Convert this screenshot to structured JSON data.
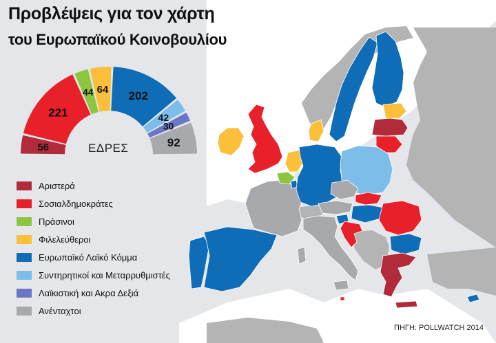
{
  "title": "Προβλέψεις για τον χάρτη",
  "subtitle": "του Ευρωπαϊκού Κοινοβουλίου",
  "seats_label": "ΕΔΡΕΣ",
  "source": "ΠΗΓΗ: POLLWATCH 2014",
  "colors": {
    "background": "#e4e6ea",
    "sea": "#ffffff",
    "non_eu": "#b4b4b4"
  },
  "groups": [
    {
      "key": "left",
      "label": "Αριστερά",
      "seats": 56,
      "color": "#b22b3a"
    },
    {
      "key": "sd",
      "label": "Σοσιαλδημοκράτες",
      "seats": 221,
      "color": "#e8202a"
    },
    {
      "key": "greens",
      "label": "Πράσινοι",
      "seats": 44,
      "color": "#8cc63f"
    },
    {
      "key": "liberals",
      "label": "Φιλελεύθεροι",
      "seats": 64,
      "color": "#fbbf3a"
    },
    {
      "key": "epp",
      "label": "Ευρωπαϊκό Λαϊκό Κόμμα",
      "seats": 202,
      "color": "#0f6cb6"
    },
    {
      "key": "ecr",
      "label": "Συντηρητικοί και Μεταρρυθμιστές",
      "seats": 42,
      "color": "#7cbdea"
    },
    {
      "key": "efd",
      "label": "Λαϊκιστική και Ακρα Δεξιά",
      "seats": 30,
      "color": "#6b76c4"
    },
    {
      "key": "ni",
      "label": "Ανένταχτοι",
      "seats": 92,
      "color": "#a7a9ac"
    }
  ],
  "countries": [
    {
      "name": "Ireland",
      "group": "liberals"
    },
    {
      "name": "United Kingdom",
      "group": "sd"
    },
    {
      "name": "Portugal",
      "group": "epp"
    },
    {
      "name": "Spain",
      "group": "epp"
    },
    {
      "name": "France",
      "group": "ni"
    },
    {
      "name": "Belgium",
      "group": "greens"
    },
    {
      "name": "Netherlands",
      "group": "liberals"
    },
    {
      "name": "Luxembourg",
      "group": "epp"
    },
    {
      "name": "Germany",
      "group": "epp"
    },
    {
      "name": "Denmark",
      "group": "liberals"
    },
    {
      "name": "Sweden",
      "group": "epp"
    },
    {
      "name": "Finland",
      "group": "epp"
    },
    {
      "name": "Estonia",
      "group": "liberals"
    },
    {
      "name": "Latvia",
      "group": "left"
    },
    {
      "name": "Lithuania",
      "group": "sd"
    },
    {
      "name": "Poland",
      "group": "ecr"
    },
    {
      "name": "Czech Republic",
      "group": "ni"
    },
    {
      "name": "Slovakia",
      "group": "sd"
    },
    {
      "name": "Austria",
      "group": "ni"
    },
    {
      "name": "Hungary",
      "group": "epp"
    },
    {
      "name": "Slovenia",
      "group": "epp"
    },
    {
      "name": "Croatia",
      "group": "sd"
    },
    {
      "name": "Italy",
      "group": "ni"
    },
    {
      "name": "Romania",
      "group": "sd"
    },
    {
      "name": "Bulgaria",
      "group": "epp"
    },
    {
      "name": "Greece",
      "group": "left"
    },
    {
      "name": "Cyprus",
      "group": "epp"
    },
    {
      "name": "Malta",
      "group": "sd"
    }
  ]
}
